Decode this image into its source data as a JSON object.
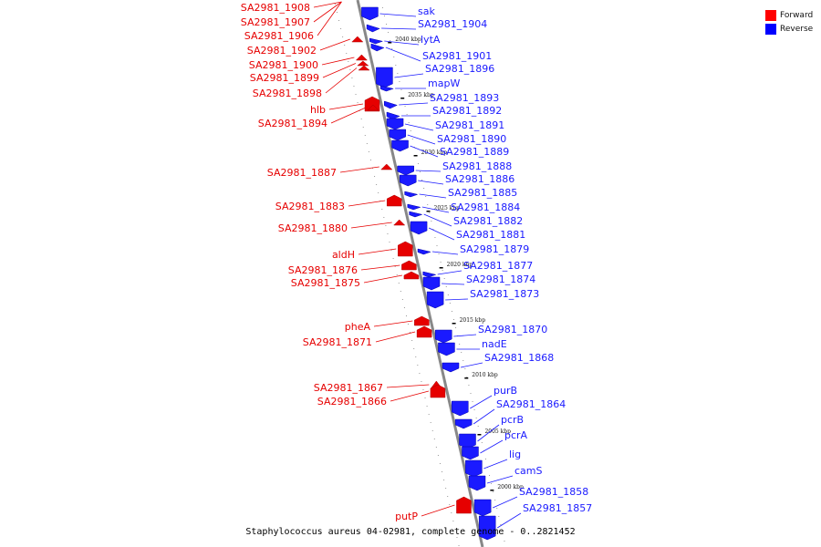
{
  "caption": "Staphylococcus aureus 04-02981, complete genome - 0..2821452",
  "legend": {
    "forward_label": "Forward",
    "forward_color": "#ff0000",
    "reverse_label": "Reverse",
    "reverse_color": "#0000ff"
  },
  "colors": {
    "forward": "#e60000",
    "reverse": "#1a1aff",
    "axis": "#888888"
  },
  "ticks": [
    "2040 kbp",
    "2035 kbp",
    "2030 kbp",
    "2025 kbp",
    "2020 kbp",
    "2015 kbp",
    "2010 kbp",
    "2005 kbp",
    "2000 kbp"
  ],
  "genes_reverse": [
    {
      "name": "sak"
    },
    {
      "name": "SA2981_1904"
    },
    {
      "name": "lytA"
    },
    {
      "name": "SA2981_1901"
    },
    {
      "name": "SA2981_1896"
    },
    {
      "name": "mapW"
    },
    {
      "name": "SA2981_1893"
    },
    {
      "name": "SA2981_1892"
    },
    {
      "name": "SA2981_1891"
    },
    {
      "name": "SA2981_1890"
    },
    {
      "name": "SA2981_1889"
    },
    {
      "name": "SA2981_1888"
    },
    {
      "name": "SA2981_1886"
    },
    {
      "name": "SA2981_1885"
    },
    {
      "name": "SA2981_1884"
    },
    {
      "name": "SA2981_1882"
    },
    {
      "name": "SA2981_1881"
    },
    {
      "name": "SA2981_1879"
    },
    {
      "name": "SA2981_1877"
    },
    {
      "name": "SA2981_1874"
    },
    {
      "name": "SA2981_1873"
    },
    {
      "name": "SA2981_1870"
    },
    {
      "name": "nadE"
    },
    {
      "name": "SA2981_1868"
    },
    {
      "name": "purB"
    },
    {
      "name": "SA2981_1864"
    },
    {
      "name": "pcrB"
    },
    {
      "name": "pcrA"
    },
    {
      "name": "lig"
    },
    {
      "name": "camS"
    },
    {
      "name": "SA2981_1858"
    },
    {
      "name": "SA2981_1857"
    }
  ],
  "genes_forward": [
    {
      "name": "SA2981_1908"
    },
    {
      "name": "SA2981_1907"
    },
    {
      "name": "SA2981_1906"
    },
    {
      "name": "SA2981_1902"
    },
    {
      "name": "SA2981_1900"
    },
    {
      "name": "SA2981_1899"
    },
    {
      "name": "SA2981_1898"
    },
    {
      "name": "hlb"
    },
    {
      "name": "SA2981_1894"
    },
    {
      "name": "SA2981_1887"
    },
    {
      "name": "SA2981_1883"
    },
    {
      "name": "SA2981_1880"
    },
    {
      "name": "aldH"
    },
    {
      "name": "SA2981_1876"
    },
    {
      "name": "SA2981_1875"
    },
    {
      "name": "pheA"
    },
    {
      "name": "SA2981_1871"
    },
    {
      "name": "SA2981_1867"
    },
    {
      "name": "SA2981_1866"
    },
    {
      "name": "putP"
    }
  ]
}
